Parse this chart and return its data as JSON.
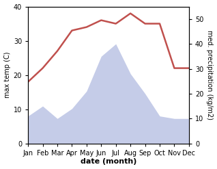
{
  "months": [
    "Jan",
    "Feb",
    "Mar",
    "Apr",
    "May",
    "Jun",
    "Jul",
    "Aug",
    "Sep",
    "Oct",
    "Nov",
    "Dec"
  ],
  "temperature": [
    18,
    22,
    27,
    33,
    34,
    36,
    35,
    38,
    35,
    35,
    22,
    22
  ],
  "precipitation": [
    11,
    15,
    10,
    14,
    21,
    35,
    40,
    28,
    20,
    11,
    10,
    10
  ],
  "temp_color": "#c0504d",
  "precip_fill_color": "#c5cce8",
  "temp_ylim": [
    0,
    40
  ],
  "precip_ylim": [
    0,
    55
  ],
  "precip_yticks": [
    0,
    10,
    20,
    30,
    40,
    50
  ],
  "temp_yticks": [
    0,
    10,
    20,
    30,
    40
  ],
  "temp_ylabel": "max temp (C)",
  "precip_ylabel": "med. precipitation (kg/m2)",
  "xlabel": "date (month)",
  "bg_color": "#ffffff",
  "temp_linewidth": 1.8,
  "tick_fontsize": 7,
  "label_fontsize": 7,
  "xlabel_fontsize": 8
}
